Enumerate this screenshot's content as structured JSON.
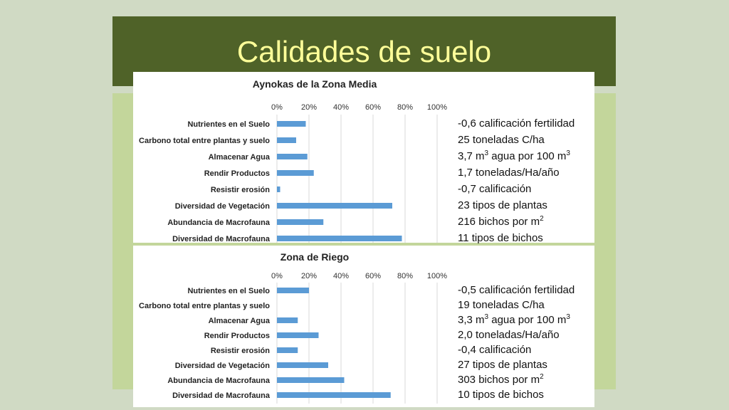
{
  "slide": {
    "title": "Calidades de suelo",
    "colors": {
      "background": "#d0dac4",
      "title_band": "#4f6228",
      "title_text": "#ffff99",
      "panel": "#c3d69b",
      "bar": "#5b9bd5"
    }
  },
  "chart_data": [
    {
      "type": "bar",
      "orientation": "horizontal",
      "title": "Aynokas de la Zona Media",
      "categories": [
        "Nutrientes en el Suelo",
        "Carbono total entre plantas y suelo",
        "Almacenar Agua",
        "Rendir Productos",
        "Resistir erosión",
        "Diversidad de Vegetación",
        "Abundancia de Macrofauna",
        "Diversidad de Macrofauna"
      ],
      "values": [
        0.18,
        0.12,
        0.19,
        0.23,
        0.02,
        0.72,
        0.29,
        0.78
      ],
      "xlim": [
        0,
        1
      ],
      "ticks": [
        "0%",
        "20%",
        "40%",
        "60%",
        "80%",
        "100%"
      ],
      "grid": true,
      "legend": "none"
    },
    {
      "type": "bar",
      "orientation": "horizontal",
      "title": "Zona de Riego",
      "categories": [
        "Nutrientes en el Suelo",
        "Carbono total entre plantas y suelo",
        "Almacenar Agua",
        "Rendir Productos",
        "Resistir erosión",
        "Diversidad de Vegetación",
        "Abundancia de Macrofauna",
        "Diversidad de Macrofauna"
      ],
      "values": [
        0.2,
        0.0,
        0.13,
        0.26,
        0.13,
        0.32,
        0.42,
        0.71
      ],
      "xlim": [
        0,
        1
      ],
      "ticks": [
        "0%",
        "20%",
        "40%",
        "60%",
        "80%",
        "100%"
      ],
      "grid": true,
      "legend": "none"
    }
  ],
  "stats": [
    [
      {
        "text": "-0,6 calificación fertilidad"
      },
      {
        "text": "25 toneladas C/ha"
      },
      {
        "text": "3,7 m",
        "sup": "3",
        "text2": " agua por 100 m",
        "sup2": "3"
      },
      {
        "text": "1,7 toneladas/Ha/año"
      },
      {
        "text": "-0,7 calificación"
      },
      {
        "text": "23 tipos de plantas"
      },
      {
        "text": "216 bichos por m",
        "sup": "2"
      },
      {
        "text": "11 tipos de bichos"
      }
    ],
    [
      {
        "text": "-0,5 calificación fertilidad"
      },
      {
        "text": "19 toneladas C/ha"
      },
      {
        "text": "3,3 m",
        "sup": "3",
        "text2": " agua por 100 m",
        "sup2": "3"
      },
      {
        "text": "2,0 toneladas/Ha/año"
      },
      {
        "text": "-0,4 calificación"
      },
      {
        "text": "27 tipos de plantas"
      },
      {
        "text": "303 bichos por m",
        "sup": "2"
      },
      {
        "text": "10 tipos de bichos"
      }
    ]
  ]
}
